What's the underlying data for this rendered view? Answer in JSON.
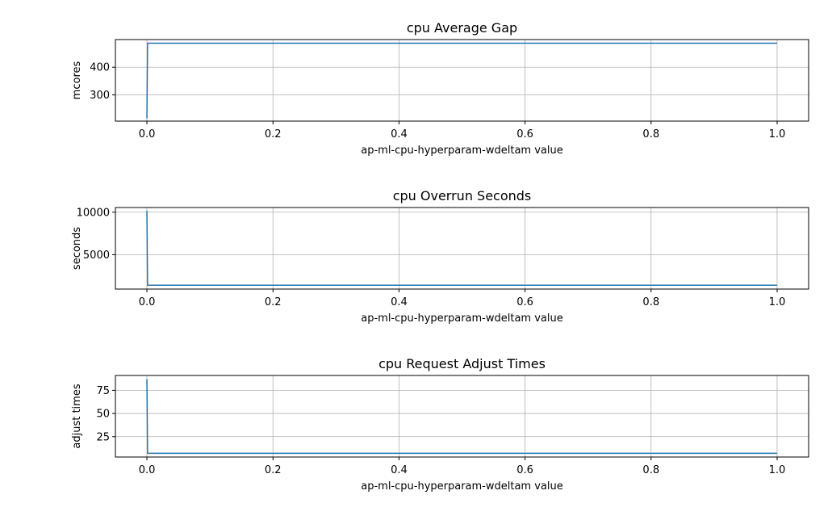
{
  "chart_data": [
    {
      "type": "line",
      "title": "cpu Average Gap",
      "xlabel": "ap-ml-cpu-hyperparam-wdeltam value",
      "ylabel": "mcores",
      "xlim": [
        -0.05,
        1.05
      ],
      "ylim": [
        205,
        500
      ],
      "xticks": [
        0.0,
        0.2,
        0.4,
        0.6,
        0.8,
        1.0
      ],
      "xtick_labels": [
        "0.0",
        "0.2",
        "0.4",
        "0.6",
        "0.8",
        "1.0"
      ],
      "yticks": [
        300,
        400
      ],
      "ytick_labels": [
        "300",
        "400"
      ],
      "grid": true,
      "series": [
        {
          "x": [
            0.0,
            0.001,
            1.0
          ],
          "y": [
            215,
            487,
            487
          ],
          "color": "#1f77b4"
        }
      ]
    },
    {
      "type": "line",
      "title": "cpu Overrun Seconds",
      "xlabel": "ap-ml-cpu-hyperparam-wdeltam value",
      "ylabel": "seconds",
      "xlim": [
        -0.05,
        1.05
      ],
      "ylim": [
        950,
        10550
      ],
      "xticks": [
        0.0,
        0.2,
        0.4,
        0.6,
        0.8,
        1.0
      ],
      "xtick_labels": [
        "0.0",
        "0.2",
        "0.4",
        "0.6",
        "0.8",
        "1.0"
      ],
      "yticks": [
        5000,
        10000
      ],
      "ytick_labels": [
        "5000",
        "10000"
      ],
      "grid": true,
      "series": [
        {
          "x": [
            0.0,
            0.001,
            1.0
          ],
          "y": [
            10150,
            1400,
            1400
          ],
          "color": "#1f77b4"
        }
      ]
    },
    {
      "type": "line",
      "title": "cpu Request Adjust Times",
      "xlabel": "ap-ml-cpu-hyperparam-wdeltam value",
      "ylabel": "adjust times",
      "xlim": [
        -0.05,
        1.05
      ],
      "ylim": [
        3,
        91
      ],
      "xticks": [
        0.0,
        0.2,
        0.4,
        0.6,
        0.8,
        1.0
      ],
      "xtick_labels": [
        "0.0",
        "0.2",
        "0.4",
        "0.6",
        "0.8",
        "1.0"
      ],
      "yticks": [
        25,
        50,
        75
      ],
      "ytick_labels": [
        "25",
        "50",
        "75"
      ],
      "grid": true,
      "series": [
        {
          "x": [
            0.0,
            0.001,
            1.0
          ],
          "y": [
            87,
            7,
            7
          ],
          "color": "#1f77b4"
        }
      ]
    }
  ]
}
